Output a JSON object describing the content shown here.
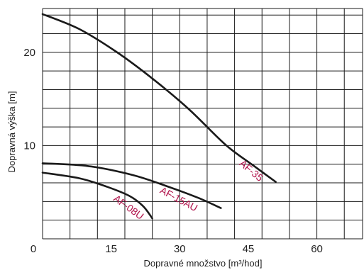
{
  "chart_data": {
    "type": "line",
    "xlabel": "Dopravné množstvo [m³/hod]",
    "ylabel": "Dopravná výška [m]",
    "xlim": [
      0,
      70
    ],
    "ylim": [
      0,
      24.7
    ],
    "x_ticks": [
      15,
      30,
      45,
      60
    ],
    "x_tick_labels": [
      "15",
      "30",
      "45",
      "60"
    ],
    "y_ticks": [
      10,
      20
    ],
    "y_tick_labels": [
      "10",
      "20"
    ],
    "origin_label": "0",
    "grid": true,
    "grid_x_step": 6,
    "grid_y_step": 2,
    "line_color": "#1a1a1a",
    "label_color": "#b0124a",
    "series": [
      {
        "name": "AF-35",
        "x": [
          0,
          8,
          16,
          24,
          32,
          40,
          46,
          51
        ],
        "y": [
          24.1,
          22.5,
          20.1,
          17.2,
          13.9,
          10.1,
          7.9,
          6.1
        ]
      },
      {
        "name": "AF-15AU",
        "x": [
          0,
          10,
          20,
          28,
          34,
          39
        ],
        "y": [
          8.1,
          7.8,
          6.8,
          5.5,
          4.4,
          3.3
        ]
      },
      {
        "name": "AF-08U",
        "x": [
          0,
          8,
          14,
          19,
          22,
          24
        ],
        "y": [
          7.1,
          6.5,
          5.6,
          4.6,
          3.5,
          2.2
        ]
      }
    ]
  }
}
